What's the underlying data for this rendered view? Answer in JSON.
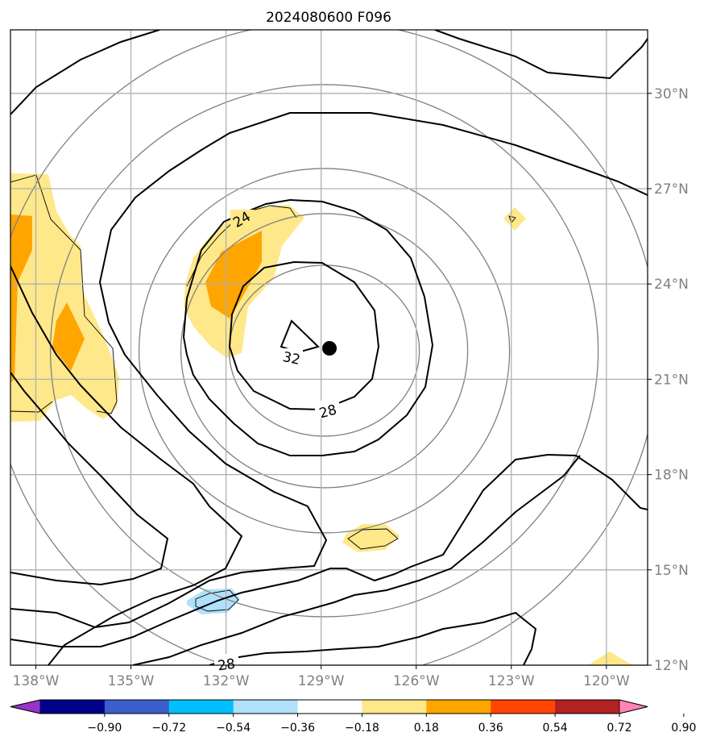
{
  "chart_data": {
    "type": "contour-map",
    "title": "2024080600 F096",
    "x_ticks": [
      "138°W",
      "135°W",
      "132°W",
      "129°W",
      "126°W",
      "123°W",
      "120°W"
    ],
    "y_ticks": [
      "30°N",
      "27°N",
      "24°N",
      "21°N",
      "18°N",
      "15°N",
      "12°N"
    ],
    "x_range_deg_w": [
      138.8,
      118.7
    ],
    "y_range_deg_n": [
      12.0,
      32.0
    ],
    "grid": true,
    "contour_labels": [
      "24",
      "32",
      "28",
      "28"
    ],
    "storm_center": {
      "lon": 128.9,
      "lat": 21.9
    },
    "colorbar": {
      "extend": "both",
      "levels": [
        -0.9,
        -0.72,
        -0.54,
        -0.36,
        -0.18,
        0.18,
        0.36,
        0.54,
        0.72,
        0.9
      ],
      "tick_labels": [
        "−0.90",
        "−0.72",
        "−0.54",
        "−0.36",
        "−0.18",
        "0.18",
        "0.36",
        "0.54",
        "0.72",
        "0.90"
      ],
      "colors": [
        "#9932cc",
        "#00008b",
        "#3a5fcd",
        "#00bfff",
        "#b0e0fa",
        "#ffffff",
        "#ffe88a",
        "#ffa500",
        "#ff4500",
        "#b22222",
        "#ff85b4"
      ]
    }
  }
}
